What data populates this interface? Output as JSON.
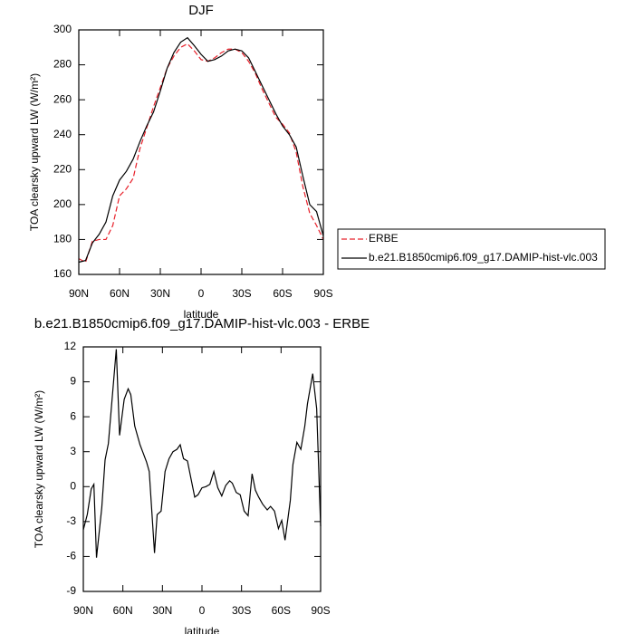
{
  "chart_data": [
    {
      "type": "line",
      "title": "DJF",
      "xlabel": "latitude",
      "ylabel": "TOA clearsky upward LW (W/m²)",
      "xlim": [
        90,
        -90
      ],
      "ylim": [
        160,
        300
      ],
      "xticks": [
        {
          "value": 90,
          "label": "90N"
        },
        {
          "value": 60,
          "label": "60N"
        },
        {
          "value": 30,
          "label": "30N"
        },
        0,
        {
          "value": -30,
          "label": "30S"
        },
        {
          "value": -60,
          "label": "60S"
        },
        {
          "value": -90,
          "label": "90S"
        }
      ],
      "yticks": [
        160,
        180,
        200,
        220,
        240,
        260,
        280,
        300
      ],
      "legend": "outside-right",
      "x": [
        90,
        85,
        80,
        75,
        70,
        65,
        60,
        55,
        50,
        45,
        40,
        35,
        30,
        25,
        20,
        15,
        10,
        5,
        0,
        -5,
        -10,
        -15,
        -20,
        -25,
        -30,
        -35,
        -40,
        -45,
        -50,
        -55,
        -60,
        -65,
        -70,
        -75,
        -80,
        -85,
        -90
      ],
      "series": [
        {
          "name": "ERBE",
          "color": "#e8202a",
          "dash": true,
          "values": [
            169,
            167,
            179,
            180,
            180,
            188,
            205,
            209,
            215,
            232,
            244,
            256,
            267,
            278,
            285,
            290,
            292,
            288,
            283,
            282,
            284,
            287,
            289,
            289,
            287,
            282,
            275,
            266,
            258,
            250,
            246,
            241,
            230,
            210,
            195,
            188,
            180
          ]
        },
        {
          "name": "b.e21.B1850cmip6.f09_g17.DAMIP-hist-vlc.003",
          "color": "#000000",
          "dash": false,
          "values": [
            167,
            168,
            178,
            183,
            190,
            205,
            214,
            219,
            226,
            236,
            245,
            253,
            265,
            278,
            287,
            293,
            295.5,
            291,
            286,
            282,
            283,
            285,
            288,
            289,
            288,
            284,
            276,
            268,
            260,
            252,
            245,
            240,
            233,
            216,
            200,
            196,
            182
          ]
        }
      ]
    },
    {
      "type": "line",
      "title": "b.e21.B1850cmip6.f09_g17.DAMIP-hist-vlc.003 - ERBE",
      "xlabel": "latitude",
      "ylabel": "TOA clearsky upward LW (W/m²)",
      "xlim": [
        90,
        -90
      ],
      "ylim": [
        -9,
        12
      ],
      "xticks": [
        {
          "value": 90,
          "label": "90N"
        },
        {
          "value": 60,
          "label": "60N"
        },
        {
          "value": 30,
          "label": "30N"
        },
        0,
        {
          "value": -30,
          "label": "30S"
        },
        {
          "value": -60,
          "label": "60S"
        },
        {
          "value": -90,
          "label": "90S"
        }
      ],
      "yticks": [
        -9,
        -6,
        -3,
        0,
        3,
        6,
        9,
        12
      ],
      "x": [
        90,
        87,
        84,
        82,
        80,
        76,
        73.5,
        71,
        67,
        65,
        62.5,
        59,
        56,
        54,
        51,
        47,
        45,
        42,
        40,
        36,
        34,
        31,
        28,
        25,
        22,
        19,
        16.5,
        14,
        11,
        8,
        5.5,
        3,
        0,
        -3,
        -6,
        -9,
        -12,
        -15,
        -18,
        -21,
        -23,
        -26,
        -29,
        -32,
        -35,
        -38,
        -40.5,
        -43,
        -46,
        -49.5,
        -52,
        -55,
        -58,
        -60.5,
        -63,
        -67,
        -69,
        -72,
        -75,
        -78,
        -80,
        -84,
        -87,
        -90
      ],
      "series": [
        {
          "color": "#000000",
          "dash": false,
          "values": [
            -3.7,
            -2.4,
            -0.2,
            0.2,
            -6.1,
            -1.8,
            2.3,
            3.7,
            9.1,
            11.8,
            4.4,
            7.5,
            8.4,
            7.9,
            5.2,
            3.6,
            3.0,
            2.1,
            1.3,
            -5.7,
            -2.4,
            -2.1,
            1.3,
            2.4,
            3.0,
            3.2,
            3.6,
            2.4,
            2.2,
            0.5,
            -0.9,
            -0.7,
            -0.1,
            0.0,
            0.2,
            1.3,
            -0.1,
            -0.8,
            0.1,
            0.5,
            0.3,
            -0.5,
            -0.7,
            -2.1,
            -2.5,
            1.1,
            -0.3,
            -0.9,
            -1.5,
            -2.0,
            -1.7,
            -2.1,
            -3.6,
            -2.9,
            -4.6,
            -1.2,
            1.9,
            3.8,
            3.2,
            5.2,
            7.1,
            9.7,
            6.7,
            -3.4
          ]
        }
      ]
    }
  ]
}
